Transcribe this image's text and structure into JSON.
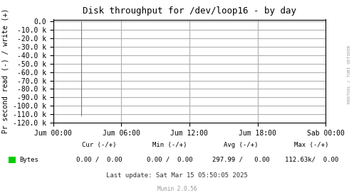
{
  "chart_data": {
    "type": "bar",
    "title": "Disk throughput for /dev/loop16 - by day",
    "y_label": "Pr second read (-) / write (+)",
    "series": [
      {
        "name": "Bytes",
        "color": "#00cc00",
        "x": [
          9000
        ],
        "values": [
          -112000
        ],
        "stats": [
          "0.00 /  0.00",
          "0.00 /  0.00",
          "297.99 /   0.00",
          "112.63k/  0.00"
        ]
      }
    ],
    "stat_columns": [
      "Cur (-/+)",
      "Min (-/+)",
      "Avg (-/+)",
      "Max (-/+)"
    ],
    "xlim": [
      0,
      86400
    ],
    "xticks": [
      {
        "value": 0,
        "label": "Jum 00:00"
      },
      {
        "value": 21600,
        "label": "Jum 06:00"
      },
      {
        "value": 43200,
        "label": "Jum 12:00"
      },
      {
        "value": 64800,
        "label": "Jum 18:00"
      },
      {
        "value": 86400,
        "label": "Sab 00:00"
      }
    ],
    "ylim": [
      -120000,
      2000
    ],
    "yticks": [
      {
        "value": 0,
        "label": "0.0"
      },
      {
        "value": -10000,
        "label": "-10.0 k"
      },
      {
        "value": -20000,
        "label": "-20.0 k"
      },
      {
        "value": -30000,
        "label": "-30.0 k"
      },
      {
        "value": -40000,
        "label": "-40.0 k"
      },
      {
        "value": -50000,
        "label": "-50.0 k"
      },
      {
        "value": -60000,
        "label": "-60.0 k"
      },
      {
        "value": -70000,
        "label": "-70.0 k"
      },
      {
        "value": -80000,
        "label": "-80.0 k"
      },
      {
        "value": -90000,
        "label": "-90.0 k"
      },
      {
        "value": -100000,
        "label": "-100.0 k"
      },
      {
        "value": -110000,
        "label": "-110.0 k"
      },
      {
        "value": -120000,
        "label": "-120.0 k"
      }
    ],
    "grid": true,
    "watermark": "RRDTOOL / TOBI OETIKER",
    "notes": [
      "Last update: Sat Mar 15 05:50:05 2025",
      "Munin 2.0.56"
    ]
  }
}
